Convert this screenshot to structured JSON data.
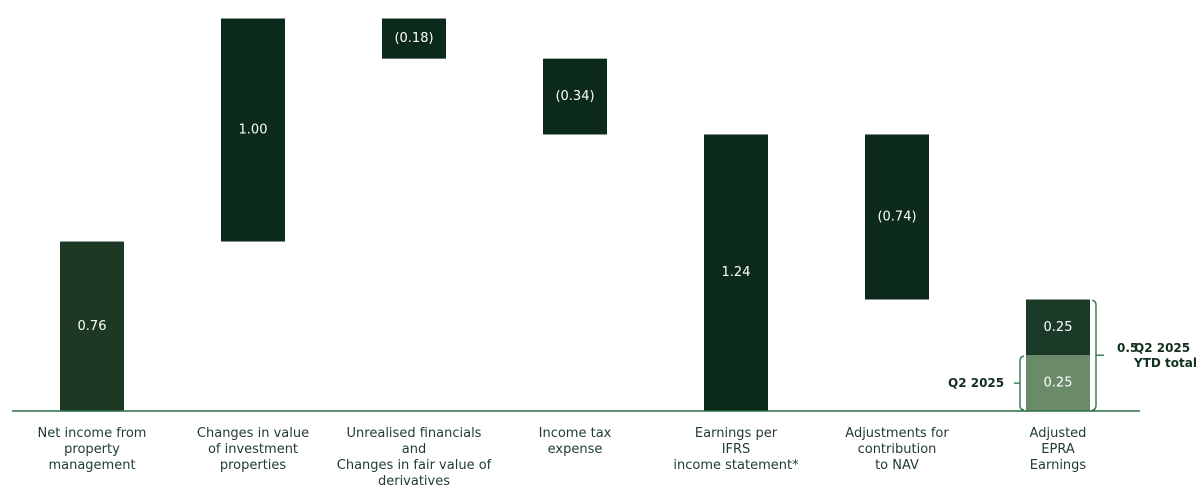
{
  "chart_data": {
    "type": "waterfall",
    "title": "",
    "xlabel": "",
    "ylabel": "",
    "categories": [
      "Net income from\nproperty\nmanagement",
      "Changes in value\nof investment\nproperties",
      "Unrealised financials\nand\nChanges in fair value of\nderivatives",
      "Income tax\nexpense",
      "Earnings per\nIFRS\nincome statement*",
      "Adjustments for\ncontribution\nto NAV",
      "Adjusted\nEPRA\nEarnings"
    ],
    "bars": [
      {
        "base": 0,
        "value": 0.76,
        "label": "0.76"
      },
      {
        "base": 0.76,
        "value": 1.0,
        "label": "1.00"
      },
      {
        "base": 1.76,
        "value": -0.18,
        "label": "(0.18)"
      },
      {
        "base": 1.58,
        "value": -0.34,
        "label": "(0.34)"
      },
      {
        "base": 0,
        "value": 1.24,
        "label": "1.24"
      },
      {
        "base": 1.24,
        "value": -0.74,
        "label": "(0.74)"
      }
    ],
    "stacked_bar": {
      "segments": [
        {
          "value": 0.25,
          "label": "0.25",
          "name": "Q2 2025"
        },
        {
          "value": 0.25,
          "label": "0.25"
        }
      ],
      "total_label": "0.5",
      "total_text": "Q2 2025\nYTD total",
      "q2_label": "Q2 2025"
    },
    "ylim": [
      0,
      1.8
    ],
    "colors": {
      "bar_light_dark": "#1e3826",
      "bar_dark": "#0b2a1b",
      "bar_stack_top": "#1b3a27",
      "bar_stack_bottom": "#6a8a68",
      "axis": "#2c6b45",
      "bracket": "#3f7f57"
    }
  }
}
